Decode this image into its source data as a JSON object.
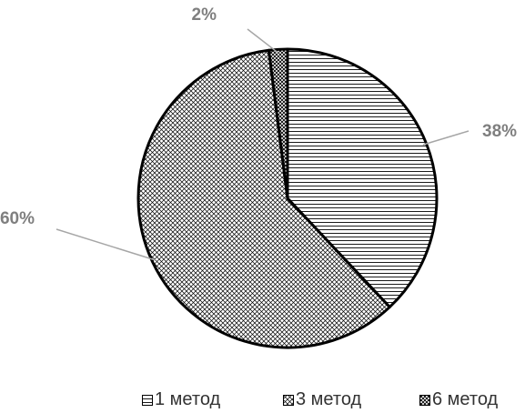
{
  "chart_data": {
    "type": "pie",
    "title": "",
    "categories": [
      "1 метод",
      "3 метод",
      "6 метод"
    ],
    "values": [
      38,
      60,
      2
    ],
    "data_labels": [
      "38%",
      "60%",
      "2%"
    ],
    "legend_position": "bottom",
    "patterns": [
      "horizontal-lines",
      "crosshatch",
      "diagonal-crosshatch"
    ],
    "colors": {
      "outline": "#000000",
      "pattern": "#000000",
      "label": "#7f7f7f",
      "leader": "#a6a6a6"
    }
  }
}
